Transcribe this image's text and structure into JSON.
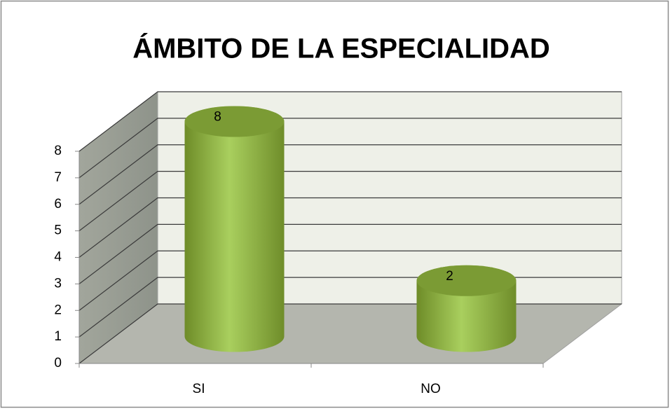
{
  "chart_data": {
    "type": "bar3d",
    "title": "ÁMBITO DE LA ESPECIALIDAD",
    "categories": [
      "SI",
      "NO"
    ],
    "values": [
      8,
      2
    ],
    "color": "#9bc04d",
    "ylim": [
      0,
      8
    ],
    "yticks": [
      0,
      1,
      2,
      3,
      4,
      5,
      6,
      7,
      8
    ],
    "grid": true
  }
}
